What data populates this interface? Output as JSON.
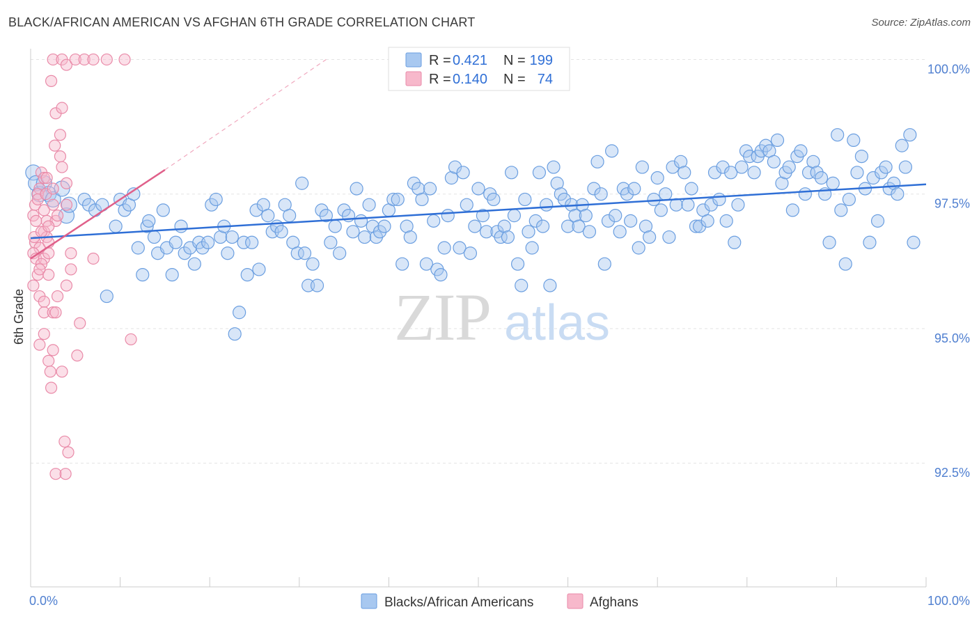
{
  "title": "BLACK/AFRICAN AMERICAN VS AFGHAN 6TH GRADE CORRELATION CHART",
  "source": "Source: ZipAtlas.com",
  "watermark": {
    "zip": "ZIP",
    "atlas": "atlas"
  },
  "legend_top": [
    {
      "r_label": "R =",
      "r_value": "0.421",
      "n_label": "N =",
      "n_value": "199",
      "color": "#a8c8f0",
      "stroke": "#6a9ee0"
    },
    {
      "r_label": "R =",
      "r_value": "0.140",
      "n_label": "N =",
      "n_value": "74",
      "color": "#f7b8cb",
      "stroke": "#e98aa8"
    }
  ],
  "legend_bottom": [
    {
      "label": "Blacks/African Americans",
      "color": "#a8c8f0",
      "stroke": "#6a9ee0"
    },
    {
      "label": "Afghans",
      "color": "#f7b8cb",
      "stroke": "#e98aa8"
    }
  ],
  "chart_data": {
    "type": "scatter",
    "title": "BLACK/AFRICAN AMERICAN VS AFGHAN 6TH GRADE CORRELATION CHART",
    "xlabel": "",
    "ylabel": "6th Grade",
    "xlim": [
      0,
      100
    ],
    "ylim": [
      90.2,
      100.2
    ],
    "x_tick_labels": [
      "0.0%",
      "100.0%"
    ],
    "y_ticks": [
      92.5,
      95.0,
      97.5,
      100.0
    ],
    "y_tick_labels": [
      "92.5%",
      "95.0%",
      "97.5%",
      "100.0%"
    ],
    "grid": true,
    "legend_position": "top-center",
    "series": [
      {
        "name": "Blacks/African Americans",
        "color": "#a8c8f0",
        "stroke": "#6a9ee0",
        "trend": {
          "x": [
            0,
            100
          ],
          "y": [
            96.68,
            97.68
          ],
          "color": "#2f6fd6"
        },
        "points": [
          [
            0.3,
            97.9
          ],
          [
            0.6,
            97.7
          ],
          [
            1.0,
            97.5
          ],
          [
            1.5,
            97.7
          ],
          [
            2.0,
            97.5
          ],
          [
            2.5,
            97.4
          ],
          [
            3.5,
            97.6
          ],
          [
            4.0,
            97.1
          ],
          [
            4.3,
            97.3
          ],
          [
            6.0,
            97.4
          ],
          [
            6.5,
            97.3
          ],
          [
            7.2,
            97.2
          ],
          [
            8.0,
            97.3
          ],
          [
            8.5,
            95.6
          ],
          [
            9.5,
            96.9
          ],
          [
            10.0,
            97.4
          ],
          [
            10.5,
            97.2
          ],
          [
            11.0,
            97.3
          ],
          [
            11.5,
            97.5
          ],
          [
            12.0,
            96.5
          ],
          [
            12.5,
            96.0
          ],
          [
            13.0,
            96.9
          ],
          [
            13.2,
            97.0
          ],
          [
            13.8,
            96.7
          ],
          [
            14.2,
            96.4
          ],
          [
            14.8,
            97.2
          ],
          [
            15.2,
            96.5
          ],
          [
            15.8,
            96.0
          ],
          [
            16.2,
            96.6
          ],
          [
            16.8,
            96.9
          ],
          [
            17.2,
            96.4
          ],
          [
            17.8,
            96.5
          ],
          [
            18.3,
            96.2
          ],
          [
            18.8,
            96.6
          ],
          [
            19.2,
            96.5
          ],
          [
            19.8,
            96.6
          ],
          [
            20.2,
            97.3
          ],
          [
            20.7,
            97.4
          ],
          [
            21.2,
            96.7
          ],
          [
            21.6,
            96.9
          ],
          [
            22.0,
            96.4
          ],
          [
            22.5,
            96.7
          ],
          [
            22.8,
            94.9
          ],
          [
            23.3,
            95.3
          ],
          [
            23.8,
            96.6
          ],
          [
            24.2,
            96.0
          ],
          [
            24.7,
            96.6
          ],
          [
            25.2,
            97.2
          ],
          [
            25.5,
            96.1
          ],
          [
            26.0,
            97.3
          ],
          [
            26.5,
            97.1
          ],
          [
            27.0,
            96.8
          ],
          [
            27.5,
            96.9
          ],
          [
            28.0,
            96.8
          ],
          [
            28.4,
            97.3
          ],
          [
            28.9,
            97.1
          ],
          [
            29.3,
            96.6
          ],
          [
            29.8,
            96.4
          ],
          [
            30.3,
            97.7
          ],
          [
            30.6,
            96.4
          ],
          [
            31.0,
            95.8
          ],
          [
            31.5,
            96.2
          ],
          [
            32.0,
            95.8
          ],
          [
            32.5,
            97.2
          ],
          [
            33.0,
            97.1
          ],
          [
            33.5,
            96.6
          ],
          [
            34.0,
            96.9
          ],
          [
            34.5,
            96.4
          ],
          [
            35.0,
            97.2
          ],
          [
            35.5,
            97.1
          ],
          [
            36.0,
            96.8
          ],
          [
            36.4,
            97.6
          ],
          [
            36.9,
            97.0
          ],
          [
            37.3,
            96.7
          ],
          [
            37.8,
            97.3
          ],
          [
            38.2,
            96.9
          ],
          [
            38.6,
            96.7
          ],
          [
            39.0,
            96.8
          ],
          [
            39.5,
            96.9
          ],
          [
            40.0,
            97.2
          ],
          [
            40.5,
            97.4
          ],
          [
            41.0,
            97.4
          ],
          [
            41.5,
            96.2
          ],
          [
            42.0,
            96.9
          ],
          [
            42.4,
            96.7
          ],
          [
            42.8,
            97.7
          ],
          [
            43.3,
            97.6
          ],
          [
            43.7,
            97.4
          ],
          [
            44.2,
            96.2
          ],
          [
            44.6,
            97.6
          ],
          [
            45.0,
            97.0
          ],
          [
            45.4,
            96.1
          ],
          [
            45.8,
            96.0
          ],
          [
            46.2,
            96.5
          ],
          [
            46.6,
            97.1
          ],
          [
            47.0,
            97.8
          ],
          [
            47.4,
            98.0
          ],
          [
            47.9,
            96.5
          ],
          [
            48.3,
            97.9
          ],
          [
            48.7,
            97.3
          ],
          [
            49.1,
            96.4
          ],
          [
            49.6,
            96.9
          ],
          [
            50.0,
            97.6
          ],
          [
            50.5,
            97.1
          ],
          [
            50.9,
            96.8
          ],
          [
            51.3,
            97.5
          ],
          [
            51.7,
            97.4
          ],
          [
            52.1,
            96.8
          ],
          [
            52.5,
            96.7
          ],
          [
            52.9,
            96.9
          ],
          [
            53.3,
            96.7
          ],
          [
            53.7,
            97.9
          ],
          [
            54.0,
            97.1
          ],
          [
            54.4,
            96.2
          ],
          [
            54.8,
            95.8
          ],
          [
            55.2,
            97.4
          ],
          [
            55.6,
            96.8
          ],
          [
            56.0,
            96.5
          ],
          [
            56.4,
            97.0
          ],
          [
            56.8,
            97.9
          ],
          [
            57.2,
            96.9
          ],
          [
            57.6,
            97.3
          ],
          [
            58.0,
            95.8
          ],
          [
            58.4,
            98.0
          ],
          [
            58.8,
            97.7
          ],
          [
            59.2,
            97.5
          ],
          [
            59.6,
            97.4
          ],
          [
            60.0,
            96.9
          ],
          [
            60.4,
            97.3
          ],
          [
            60.8,
            97.1
          ],
          [
            61.2,
            96.9
          ],
          [
            61.6,
            97.3
          ],
          [
            62.0,
            97.1
          ],
          [
            62.4,
            96.8
          ],
          [
            62.9,
            97.6
          ],
          [
            63.3,
            98.1
          ],
          [
            63.7,
            97.5
          ],
          [
            64.1,
            96.2
          ],
          [
            64.5,
            97.0
          ],
          [
            64.9,
            98.3
          ],
          [
            65.3,
            97.1
          ],
          [
            65.8,
            96.8
          ],
          [
            66.2,
            97.6
          ],
          [
            66.6,
            97.5
          ],
          [
            67.0,
            97.0
          ],
          [
            67.4,
            97.6
          ],
          [
            67.9,
            96.5
          ],
          [
            68.3,
            98.0
          ],
          [
            68.7,
            96.9
          ],
          [
            69.1,
            96.7
          ],
          [
            69.6,
            97.4
          ],
          [
            70.0,
            97.8
          ],
          [
            70.4,
            97.2
          ],
          [
            70.9,
            97.5
          ],
          [
            71.3,
            96.7
          ],
          [
            71.7,
            98.0
          ],
          [
            72.1,
            97.3
          ],
          [
            72.6,
            98.1
          ],
          [
            73.0,
            97.9
          ],
          [
            73.4,
            97.3
          ],
          [
            73.8,
            97.6
          ],
          [
            74.3,
            96.9
          ],
          [
            74.7,
            96.9
          ],
          [
            75.1,
            97.2
          ],
          [
            75.6,
            97.0
          ],
          [
            76.0,
            97.3
          ],
          [
            76.4,
            97.9
          ],
          [
            76.9,
            97.4
          ],
          [
            77.3,
            98.0
          ],
          [
            77.7,
            97.0
          ],
          [
            78.2,
            97.9
          ],
          [
            78.6,
            96.6
          ],
          [
            79.0,
            97.3
          ],
          [
            79.4,
            98.0
          ],
          [
            79.9,
            98.3
          ],
          [
            80.3,
            98.2
          ],
          [
            80.8,
            97.9
          ],
          [
            81.2,
            98.2
          ],
          [
            81.6,
            98.3
          ],
          [
            82.1,
            98.4
          ],
          [
            82.5,
            98.3
          ],
          [
            83.0,
            98.1
          ],
          [
            83.4,
            98.5
          ],
          [
            83.9,
            97.7
          ],
          [
            84.3,
            97.9
          ],
          [
            84.7,
            98.0
          ],
          [
            85.1,
            97.2
          ],
          [
            85.6,
            98.2
          ],
          [
            86.0,
            98.3
          ],
          [
            86.5,
            97.5
          ],
          [
            86.9,
            97.9
          ],
          [
            87.4,
            98.1
          ],
          [
            87.8,
            97.9
          ],
          [
            88.3,
            97.8
          ],
          [
            88.7,
            97.5
          ],
          [
            89.2,
            96.6
          ],
          [
            89.6,
            97.7
          ],
          [
            90.1,
            98.6
          ],
          [
            90.5,
            97.2
          ],
          [
            91.0,
            96.2
          ],
          [
            91.4,
            97.4
          ],
          [
            91.9,
            98.5
          ],
          [
            92.3,
            97.9
          ],
          [
            92.8,
            98.2
          ],
          [
            93.2,
            97.6
          ],
          [
            93.7,
            96.6
          ],
          [
            94.1,
            97.8
          ],
          [
            94.6,
            97.0
          ],
          [
            95.0,
            97.9
          ],
          [
            95.5,
            98.0
          ],
          [
            95.9,
            97.6
          ],
          [
            96.4,
            97.7
          ],
          [
            96.8,
            97.5
          ],
          [
            97.3,
            98.4
          ],
          [
            97.7,
            98.0
          ],
          [
            98.2,
            98.6
          ],
          [
            98.6,
            96.6
          ]
        ]
      },
      {
        "name": "Afghans",
        "color": "#f7b8cb",
        "stroke": "#e98aa8",
        "trend": {
          "x": [
            0,
            15
          ],
          "y": [
            96.3,
            97.95
          ],
          "color": "#e0608a",
          "dashed_extension": {
            "x": [
              15,
              33
            ],
            "y": [
              97.95,
              100.0
            ]
          }
        },
        "points": [
          [
            2.5,
            100.0
          ],
          [
            3.5,
            100.0
          ],
          [
            4.0,
            99.9
          ],
          [
            5.0,
            100.0
          ],
          [
            6.0,
            100.0
          ],
          [
            7.0,
            100.0
          ],
          [
            8.5,
            100.0
          ],
          [
            10.5,
            100.0
          ],
          [
            2.3,
            99.6
          ],
          [
            2.8,
            99.0
          ],
          [
            3.5,
            99.1
          ],
          [
            3.3,
            98.6
          ],
          [
            2.7,
            98.4
          ],
          [
            3.3,
            98.2
          ],
          [
            3.5,
            98.0
          ],
          [
            1.2,
            97.9
          ],
          [
            1.5,
            97.8
          ],
          [
            1.8,
            97.8
          ],
          [
            4.0,
            97.7
          ],
          [
            1.0,
            97.6
          ],
          [
            0.8,
            97.5
          ],
          [
            0.5,
            97.3
          ],
          [
            2.5,
            97.3
          ],
          [
            1.5,
            97.2
          ],
          [
            0.3,
            97.1
          ],
          [
            1.8,
            97.0
          ],
          [
            2.8,
            97.0
          ],
          [
            1.5,
            96.8
          ],
          [
            1.8,
            96.7
          ],
          [
            0.5,
            96.6
          ],
          [
            1.0,
            96.5
          ],
          [
            0.3,
            96.4
          ],
          [
            0.6,
            96.3
          ],
          [
            1.5,
            96.3
          ],
          [
            2.0,
            96.4
          ],
          [
            4.5,
            96.4
          ],
          [
            7.0,
            96.3
          ],
          [
            1.2,
            96.2
          ],
          [
            4.5,
            96.1
          ],
          [
            0.8,
            96.0
          ],
          [
            2.0,
            96.0
          ],
          [
            0.3,
            95.8
          ],
          [
            4.0,
            95.8
          ],
          [
            1.0,
            95.6
          ],
          [
            1.5,
            95.5
          ],
          [
            3.0,
            95.6
          ],
          [
            1.5,
            95.3
          ],
          [
            2.5,
            95.3
          ],
          [
            2.8,
            95.3
          ],
          [
            5.5,
            95.1
          ],
          [
            1.5,
            94.9
          ],
          [
            11.2,
            94.8
          ],
          [
            1.0,
            94.7
          ],
          [
            2.5,
            94.6
          ],
          [
            5.2,
            94.5
          ],
          [
            2.0,
            94.4
          ],
          [
            2.2,
            94.2
          ],
          [
            3.5,
            94.2
          ],
          [
            2.3,
            93.9
          ],
          [
            3.8,
            92.9
          ],
          [
            4.2,
            92.7
          ],
          [
            2.8,
            92.3
          ],
          [
            3.9,
            92.3
          ],
          [
            0.8,
            97.4
          ],
          [
            0.6,
            97.0
          ],
          [
            2.0,
            96.6
          ],
          [
            1.0,
            96.1
          ],
          [
            0.4,
            96.7
          ],
          [
            1.2,
            96.8
          ],
          [
            2.0,
            96.9
          ],
          [
            3.0,
            97.1
          ],
          [
            4.0,
            97.3
          ],
          [
            1.7,
            97.5
          ],
          [
            2.5,
            97.6
          ]
        ]
      }
    ]
  }
}
